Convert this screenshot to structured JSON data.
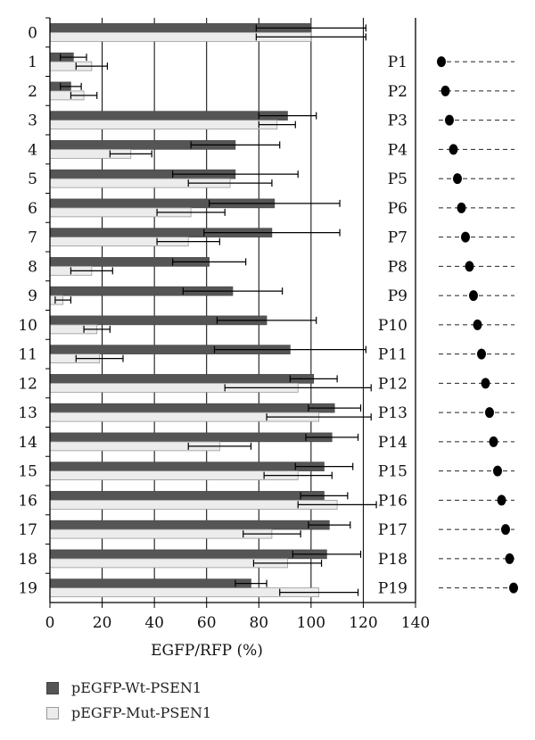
{
  "chart_data": {
    "type": "bar",
    "orientation": "horizontal",
    "categories": [
      "0",
      "1",
      "2",
      "3",
      "4",
      "5",
      "6",
      "7",
      "8",
      "9",
      "10",
      "11",
      "12",
      "13",
      "14",
      "15",
      "16",
      "17",
      "18",
      "19"
    ],
    "series": [
      {
        "name": "pEGFP-Wt-PSEN1",
        "color": "#555555",
        "values": [
          100,
          9,
          8,
          91,
          71,
          71,
          86,
          85,
          61,
          70,
          83,
          92,
          101,
          109,
          108,
          105,
          105,
          107,
          106,
          77
        ],
        "errors": [
          21,
          5,
          4,
          11,
          17,
          24,
          25,
          26,
          14,
          19,
          19,
          29,
          9,
          10,
          10,
          11,
          9,
          8,
          13,
          6
        ]
      },
      {
        "name": "pEGFP-Mut-PSEN1",
        "color": "#ececec",
        "values": [
          100,
          16,
          13,
          87,
          31,
          69,
          54,
          53,
          16,
          5,
          18,
          19,
          95,
          103,
          65,
          95,
          110,
          85,
          91,
          103
        ],
        "errors": [
          21,
          6,
          5,
          7,
          8,
          16,
          13,
          12,
          8,
          3,
          5,
          9,
          28,
          20,
          12,
          13,
          15,
          11,
          13,
          15
        ]
      }
    ],
    "xlabel": "EGFP/RFP (%)",
    "xlim": [
      0,
      140
    ],
    "xticks": [
      0,
      20,
      40,
      60,
      80,
      100,
      120,
      140
    ],
    "grid": "vertical",
    "legend_position": "bottom-left",
    "annotations": {
      "probe_labels": [
        "P1",
        "P2",
        "P3",
        "P4",
        "P5",
        "P6",
        "P7",
        "P8",
        "P9",
        "P10",
        "P11",
        "P12",
        "P13",
        "P14",
        "P15",
        "P16",
        "P17",
        "P18",
        "P19"
      ],
      "dot_color": "#000000"
    }
  },
  "legend": {
    "wt_label": "pEGFP-Wt-PSEN1",
    "mut_label": "pEGFP-Mut-PSEN1"
  }
}
